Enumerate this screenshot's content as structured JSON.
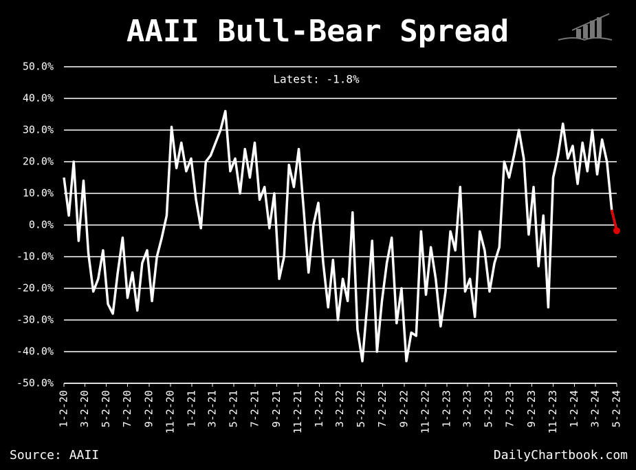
{
  "chart_data": {
    "type": "line",
    "title": "AAII Bull-Bear Spread",
    "annotation": "Latest: -1.8%",
    "source": "Source: AAII",
    "credit": "DailyChartbook.com",
    "color": "#ffffff",
    "end_color": "#e00000",
    "grid": true,
    "xlim": [
      "2020-01-02",
      "2024-05-02"
    ],
    "ylim": [
      -50,
      50
    ],
    "yticks": [
      {
        "value": 50,
        "label": "50.0%"
      },
      {
        "value": 40,
        "label": "40.0%"
      },
      {
        "value": 30,
        "label": "30.0%"
      },
      {
        "value": 20,
        "label": "20.0%"
      },
      {
        "value": 10,
        "label": "10.0%"
      },
      {
        "value": 0,
        "label": "0.0%"
      },
      {
        "value": -10,
        "label": "-10.0%"
      },
      {
        "value": -20,
        "label": "-20.0%"
      },
      {
        "value": -30,
        "label": "-30.0%"
      },
      {
        "value": -40,
        "label": "-40.0%"
      },
      {
        "value": -50,
        "label": "-50.0%"
      }
    ],
    "xticks": [
      {
        "value": "2020-01-02",
        "label": "1-2-20"
      },
      {
        "value": "2020-03-02",
        "label": "3-2-20"
      },
      {
        "value": "2020-05-02",
        "label": "5-2-20"
      },
      {
        "value": "2020-07-02",
        "label": "7-2-20"
      },
      {
        "value": "2020-09-02",
        "label": "9-2-20"
      },
      {
        "value": "2020-11-02",
        "label": "11-2-20"
      },
      {
        "value": "2021-01-02",
        "label": "1-2-21"
      },
      {
        "value": "2021-03-02",
        "label": "3-2-21"
      },
      {
        "value": "2021-05-02",
        "label": "5-2-21"
      },
      {
        "value": "2021-07-02",
        "label": "7-2-21"
      },
      {
        "value": "2021-09-02",
        "label": "9-2-21"
      },
      {
        "value": "2021-11-02",
        "label": "11-2-21"
      },
      {
        "value": "2022-01-02",
        "label": "1-2-22"
      },
      {
        "value": "2022-03-02",
        "label": "3-2-22"
      },
      {
        "value": "2022-05-02",
        "label": "5-2-22"
      },
      {
        "value": "2022-07-02",
        "label": "7-2-22"
      },
      {
        "value": "2022-09-02",
        "label": "9-2-22"
      },
      {
        "value": "2022-11-02",
        "label": "11-2-22"
      },
      {
        "value": "2023-01-02",
        "label": "1-2-23"
      },
      {
        "value": "2023-03-02",
        "label": "3-2-23"
      },
      {
        "value": "2023-05-02",
        "label": "5-2-23"
      },
      {
        "value": "2023-07-02",
        "label": "7-2-23"
      },
      {
        "value": "2023-09-02",
        "label": "9-2-23"
      },
      {
        "value": "2023-11-02",
        "label": "11-2-23"
      },
      {
        "value": "2024-01-02",
        "label": "1-2-24"
      },
      {
        "value": "2024-03-02",
        "label": "3-2-24"
      },
      {
        "value": "2024-05-02",
        "label": "5-2-24"
      }
    ],
    "x": [
      "2020-01-02",
      "2020-01-16",
      "2020-01-30",
      "2020-02-13",
      "2020-02-27",
      "2020-03-12",
      "2020-03-26",
      "2020-04-09",
      "2020-04-23",
      "2020-05-07",
      "2020-05-21",
      "2020-06-04",
      "2020-06-18",
      "2020-07-02",
      "2020-07-16",
      "2020-07-30",
      "2020-08-13",
      "2020-08-27",
      "2020-09-10",
      "2020-09-24",
      "2020-10-08",
      "2020-10-22",
      "2020-11-05",
      "2020-11-19",
      "2020-12-03",
      "2020-12-17",
      "2020-12-31",
      "2021-01-14",
      "2021-01-28",
      "2021-02-11",
      "2021-02-25",
      "2021-03-11",
      "2021-03-25",
      "2021-04-08",
      "2021-04-22",
      "2021-05-06",
      "2021-05-20",
      "2021-06-03",
      "2021-06-17",
      "2021-07-01",
      "2021-07-15",
      "2021-07-29",
      "2021-08-12",
      "2021-08-26",
      "2021-09-09",
      "2021-09-23",
      "2021-10-07",
      "2021-10-21",
      "2021-11-04",
      "2021-11-18",
      "2021-12-02",
      "2021-12-16",
      "2021-12-30",
      "2022-01-13",
      "2022-01-27",
      "2022-02-10",
      "2022-02-24",
      "2022-03-10",
      "2022-03-24",
      "2022-04-07",
      "2022-04-21",
      "2022-05-05",
      "2022-05-19",
      "2022-06-02",
      "2022-06-16",
      "2022-06-30",
      "2022-07-14",
      "2022-07-28",
      "2022-08-11",
      "2022-08-25",
      "2022-09-08",
      "2022-09-22",
      "2022-10-06",
      "2022-10-20",
      "2022-11-03",
      "2022-11-17",
      "2022-12-01",
      "2022-12-15",
      "2022-12-29",
      "2023-01-12",
      "2023-01-26",
      "2023-02-09",
      "2023-02-23",
      "2023-03-09",
      "2023-03-23",
      "2023-04-06",
      "2023-04-20",
      "2023-05-04",
      "2023-05-18",
      "2023-06-01",
      "2023-06-15",
      "2023-06-29",
      "2023-07-13",
      "2023-07-27",
      "2023-08-10",
      "2023-08-24",
      "2023-09-07",
      "2023-09-21",
      "2023-10-05",
      "2023-10-19",
      "2023-11-02",
      "2023-11-16",
      "2023-11-30",
      "2023-12-14",
      "2023-12-28",
      "2024-01-11",
      "2024-01-25",
      "2024-02-08",
      "2024-02-22",
      "2024-03-07",
      "2024-03-21",
      "2024-04-04",
      "2024-04-18",
      "2024-05-02"
    ],
    "values": [
      15,
      3,
      20,
      -5,
      14,
      -9,
      -21,
      -17,
      -8,
      -25,
      -28,
      -15,
      -4,
      -23,
      -15,
      -27,
      -12,
      -8,
      -24,
      -10,
      -4,
      3,
      31,
      18,
      26,
      17,
      21,
      8,
      -1,
      20,
      22,
      26,
      30,
      36,
      17,
      21,
      10,
      24,
      15,
      26,
      8,
      12,
      -1,
      10,
      -17,
      -10,
      19,
      12,
      24,
      5,
      -15,
      0,
      7,
      -12,
      -26,
      -11,
      -30,
      -17,
      -24,
      4,
      -33,
      -43,
      -25,
      -5,
      -40,
      -24,
      -12,
      -4,
      -31,
      -20,
      -43,
      -34,
      -35,
      -2,
      -22,
      -7,
      -17,
      -32,
      -21,
      -2,
      -8,
      12,
      -21,
      -17,
      -29,
      -2,
      -8,
      -21,
      -12,
      -7,
      20,
      15,
      22,
      30,
      21,
      -3,
      12,
      -13,
      3,
      -26,
      15,
      22,
      32,
      21,
      25,
      13,
      26,
      17,
      30,
      16,
      27,
      20,
      4.5,
      -1.8
    ]
  }
}
